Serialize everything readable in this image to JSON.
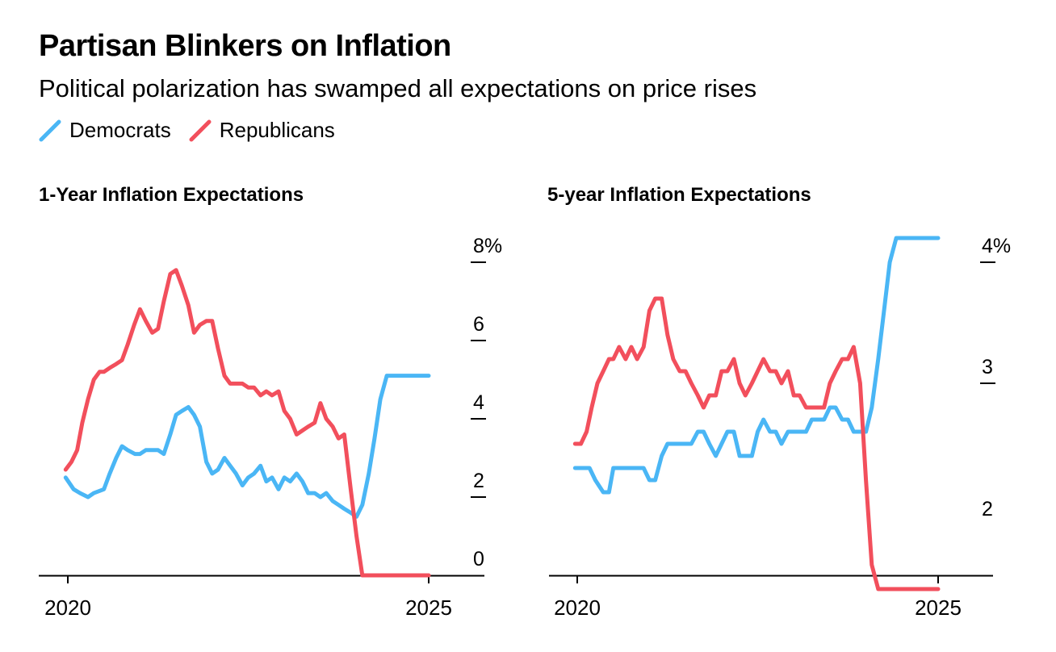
{
  "title": "Partisan Blinkers on Inflation",
  "subtitle": "Political polarization has swamped all expectations on price rises",
  "legend": [
    {
      "label": "Democrats",
      "color": "#4ab6f5"
    },
    {
      "label": "Republicans",
      "color": "#f24f5c"
    }
  ],
  "colors": {
    "democrats": "#4ab6f5",
    "republicans": "#f24f5c",
    "axis": "#000000"
  },
  "chart_data": [
    {
      "type": "line",
      "title": "1-Year Inflation Expectations",
      "xlabel": "",
      "ylabel": "",
      "xlim": [
        2019.8,
        2025.75
      ],
      "ylim": [
        0,
        8
      ],
      "x_ticks": [
        2020,
        2025
      ],
      "x_tick_labels": [
        "2020",
        "2025"
      ],
      "y_ticks": [
        0,
        2,
        4,
        6,
        8
      ],
      "y_tick_labels": [
        "0",
        "2",
        "4",
        "6",
        "8%"
      ],
      "y_axis_side": "right",
      "grid": false,
      "series": [
        {
          "name": "Democrats",
          "color": "#4ab6f5",
          "x": [
            2019.97,
            2020.08,
            2020.17,
            2020.28,
            2020.36,
            2020.5,
            2020.58,
            2020.67,
            2020.75,
            2020.83,
            2020.93,
            2021.0,
            2021.08,
            2021.17,
            2021.25,
            2021.33,
            2021.42,
            2021.5,
            2021.58,
            2021.67,
            2021.75,
            2021.83,
            2021.92,
            2022.0,
            2022.08,
            2022.17,
            2022.25,
            2022.33,
            2022.42,
            2022.5,
            2022.58,
            2022.67,
            2022.75,
            2022.83,
            2022.92,
            2023.0,
            2023.08,
            2023.17,
            2023.25,
            2023.33,
            2023.42,
            2023.5,
            2023.58,
            2023.67,
            2023.75,
            2023.83,
            2023.92,
            2024.0,
            2024.08,
            2024.17,
            2024.25,
            2024.33,
            2024.42,
            2024.5,
            2024.58,
            2024.67,
            2024.75,
            2024.83,
            2024.92,
            2025.0
          ],
          "y": [
            2.5,
            2.2,
            2.1,
            2.0,
            2.1,
            2.2,
            2.6,
            3.0,
            3.3,
            3.2,
            3.1,
            3.1,
            3.2,
            3.2,
            3.2,
            3.1,
            3.6,
            4.1,
            4.2,
            4.3,
            4.1,
            3.8,
            2.9,
            2.6,
            2.7,
            3.0,
            2.8,
            2.6,
            2.3,
            2.5,
            2.6,
            2.8,
            2.4,
            2.5,
            2.2,
            2.5,
            2.4,
            2.6,
            2.4,
            2.1,
            2.1,
            2.0,
            2.1,
            1.9,
            1.8,
            1.7,
            1.6,
            1.5,
            1.8,
            2.6,
            3.5,
            4.5,
            5.1,
            5.1,
            5.1,
            5.1,
            5.1,
            5.1,
            5.1,
            5.1
          ]
        },
        {
          "name": "Republicans",
          "color": "#f24f5c",
          "x": [
            2019.97,
            2020.05,
            2020.13,
            2020.2,
            2020.28,
            2020.36,
            2020.44,
            2020.5,
            2020.58,
            2020.67,
            2020.75,
            2020.83,
            2020.92,
            2021.0,
            2021.08,
            2021.17,
            2021.25,
            2021.33,
            2021.42,
            2021.5,
            2021.58,
            2021.67,
            2021.75,
            2021.83,
            2021.92,
            2022.0,
            2022.08,
            2022.17,
            2022.25,
            2022.33,
            2022.42,
            2022.5,
            2022.58,
            2022.67,
            2022.75,
            2022.83,
            2022.92,
            2023.0,
            2023.08,
            2023.17,
            2023.25,
            2023.33,
            2023.42,
            2023.5,
            2023.58,
            2023.67,
            2023.75,
            2023.83,
            2023.92,
            2024.0,
            2024.08,
            2024.17,
            2024.25,
            2024.33,
            2024.42,
            2024.5,
            2024.58,
            2024.67,
            2024.75,
            2024.83,
            2024.92,
            2025.0
          ],
          "y": [
            2.7,
            2.9,
            3.2,
            3.9,
            4.5,
            5.0,
            5.2,
            5.2,
            5.3,
            5.4,
            5.5,
            5.9,
            6.4,
            6.8,
            6.5,
            6.2,
            6.3,
            7.0,
            7.7,
            7.8,
            7.4,
            6.9,
            6.2,
            6.4,
            6.5,
            6.5,
            5.8,
            5.1,
            4.9,
            4.9,
            4.9,
            4.8,
            4.8,
            4.6,
            4.7,
            4.6,
            4.7,
            4.2,
            4.0,
            3.6,
            3.7,
            3.8,
            3.9,
            4.4,
            4.0,
            3.8,
            3.5,
            3.6,
            2.2,
            1.0,
            0.0,
            0.0,
            0.0,
            0.0,
            0.0,
            0.0,
            0.0,
            0.0,
            0.0,
            0.0,
            0.0,
            0.0
          ]
        }
      ]
    },
    {
      "type": "line",
      "title": "5-year Inflation Expectations",
      "xlabel": "",
      "ylabel": "",
      "xlim": [
        2019.8,
        2025.75
      ],
      "ylim": [
        1.25,
        4.2
      ],
      "x_ticks": [
        2020,
        2025
      ],
      "x_tick_labels": [
        "2020",
        "2025"
      ],
      "y_ticks": [
        2,
        3,
        4
      ],
      "y_tick_labels": [
        "2",
        "3",
        "4%"
      ],
      "y_axis_side": "right",
      "grid": false,
      "series": [
        {
          "name": "Democrats",
          "color": "#4ab6f5",
          "x": [
            2019.97,
            2020.08,
            2020.17,
            2020.25,
            2020.36,
            2020.44,
            2020.5,
            2020.58,
            2020.67,
            2020.75,
            2020.83,
            2020.92,
            2021.0,
            2021.08,
            2021.17,
            2021.25,
            2021.33,
            2021.42,
            2021.5,
            2021.58,
            2021.67,
            2021.75,
            2021.83,
            2021.92,
            2022.0,
            2022.08,
            2022.17,
            2022.25,
            2022.33,
            2022.42,
            2022.5,
            2022.58,
            2022.67,
            2022.75,
            2022.83,
            2022.92,
            2023.0,
            2023.08,
            2023.17,
            2023.25,
            2023.33,
            2023.42,
            2023.5,
            2023.58,
            2023.67,
            2023.75,
            2023.83,
            2023.92,
            2024.0,
            2024.08,
            2024.17,
            2024.25,
            2024.33,
            2024.42,
            2024.5,
            2024.58,
            2024.67,
            2024.75,
            2024.83,
            2024.92,
            2025.0
          ],
          "y": [
            2.3,
            2.3,
            2.3,
            2.2,
            2.1,
            2.1,
            2.3,
            2.3,
            2.3,
            2.3,
            2.3,
            2.3,
            2.2,
            2.2,
            2.4,
            2.5,
            2.5,
            2.5,
            2.5,
            2.5,
            2.6,
            2.6,
            2.5,
            2.4,
            2.5,
            2.6,
            2.6,
            2.4,
            2.4,
            2.4,
            2.6,
            2.7,
            2.6,
            2.6,
            2.5,
            2.6,
            2.6,
            2.6,
            2.6,
            2.7,
            2.7,
            2.7,
            2.8,
            2.8,
            2.7,
            2.7,
            2.6,
            2.6,
            2.6,
            2.8,
            3.2,
            3.6,
            4.0,
            4.2,
            4.2,
            4.2,
            4.2,
            4.2,
            4.2,
            4.2,
            4.2
          ]
        },
        {
          "name": "Republicans",
          "color": "#f24f5c",
          "x": [
            2019.97,
            2020.05,
            2020.13,
            2020.2,
            2020.28,
            2020.36,
            2020.44,
            2020.5,
            2020.58,
            2020.67,
            2020.75,
            2020.83,
            2020.92,
            2021.0,
            2021.08,
            2021.17,
            2021.25,
            2021.33,
            2021.42,
            2021.5,
            2021.58,
            2021.67,
            2021.75,
            2021.83,
            2021.92,
            2022.0,
            2022.08,
            2022.17,
            2022.25,
            2022.33,
            2022.42,
            2022.5,
            2022.58,
            2022.67,
            2022.75,
            2022.83,
            2022.92,
            2023.0,
            2023.08,
            2023.17,
            2023.25,
            2023.33,
            2023.42,
            2023.5,
            2023.58,
            2023.67,
            2023.75,
            2023.83,
            2023.92,
            2024.0,
            2024.08,
            2024.17,
            2024.25,
            2024.33,
            2024.42,
            2024.5,
            2024.58,
            2024.67,
            2024.75,
            2024.83,
            2024.92,
            2025.0
          ],
          "y": [
            2.5,
            2.5,
            2.6,
            2.8,
            3.0,
            3.1,
            3.2,
            3.2,
            3.3,
            3.2,
            3.3,
            3.2,
            3.3,
            3.6,
            3.7,
            3.7,
            3.4,
            3.2,
            3.1,
            3.1,
            3.0,
            2.9,
            2.8,
            2.9,
            2.9,
            3.1,
            3.1,
            3.2,
            3.0,
            2.9,
            3.0,
            3.1,
            3.2,
            3.1,
            3.1,
            3.0,
            3.1,
            2.9,
            2.9,
            2.8,
            2.8,
            2.8,
            2.8,
            3.0,
            3.1,
            3.2,
            3.2,
            3.3,
            3.0,
            2.2,
            1.5,
            1.3,
            1.3,
            1.3,
            1.3,
            1.3,
            1.3,
            1.3,
            1.3,
            1.3,
            1.3,
            1.3
          ]
        }
      ]
    }
  ]
}
